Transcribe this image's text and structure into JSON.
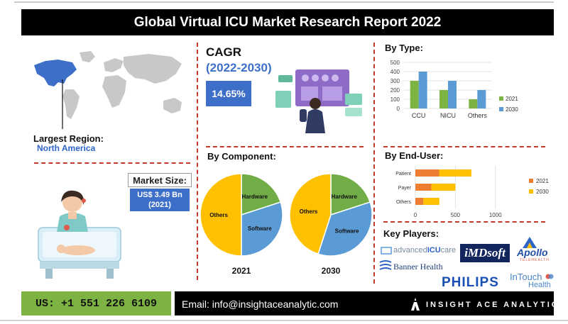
{
  "title": "Global Virtual ICU Market Research Report 2022",
  "region": {
    "label": "Largest Region:",
    "value": "North America"
  },
  "market_size": {
    "label": "Market Size:",
    "value_line1": "US$ 3.49 Bn",
    "value_line2": "(2021)"
  },
  "cagr": {
    "label": "CAGR",
    "period": "(2022-2030)",
    "value": "14.65%"
  },
  "sections": {
    "by_type": "By Type:",
    "by_component": "By Component:",
    "by_end_user": "By End-User:",
    "key_players": "Key Players:"
  },
  "colors": {
    "y2021": "#7cb342",
    "y2030": "#5b9bd5",
    "hw": "#70ad47",
    "sw": "#5b9bd5",
    "others": "#ffc000",
    "eu2021": "#ed7d31",
    "eu2030": "#ffc000",
    "accent": "#3d6fc9",
    "divider": "#c0392b"
  },
  "chart_data": [
    {
      "type": "bar",
      "title": "By Type:",
      "categories": [
        "CCU",
        "NICU",
        "Others"
      ],
      "series": [
        {
          "name": "2021",
          "values": [
            300,
            200,
            100
          ]
        },
        {
          "name": "2030",
          "values": [
            400,
            300,
            200
          ]
        }
      ],
      "yticks": [
        "0",
        "100",
        "200",
        "300",
        "400",
        "500"
      ],
      "ylim": [
        0,
        500
      ],
      "legend": "right"
    },
    {
      "type": "pie",
      "title": "By Component:",
      "year": "2021",
      "slices": [
        {
          "label": "Hardware",
          "value": 20
        },
        {
          "label": "Software",
          "value": 30
        },
        {
          "label": "Others",
          "value": 50
        }
      ]
    },
    {
      "type": "pie",
      "title": "By Component:",
      "year": "2030",
      "slices": [
        {
          "label": "Hardware",
          "value": 20
        },
        {
          "label": "Software",
          "value": 35
        },
        {
          "label": "Others",
          "value": 45
        }
      ]
    },
    {
      "type": "bar",
      "orientation": "horizontal",
      "stacked": true,
      "title": "By End-User:",
      "categories": [
        "Patient",
        "Payer",
        "Others"
      ],
      "series": [
        {
          "name": "2021",
          "values": [
            300,
            200,
            100
          ]
        },
        {
          "name": "2030",
          "values": [
            400,
            300,
            200
          ]
        }
      ],
      "xticks": [
        "0",
        "500",
        "1000"
      ],
      "xlim": [
        0,
        1100
      ],
      "legend": "right"
    }
  ],
  "players": {
    "advanced": {
      "part1": "advanced",
      "part2": "ICU",
      "part3": "care"
    },
    "imdsoft": "iMDsoft",
    "apollo": {
      "name": "Apollo",
      "sub": "TELEHEALTH"
    },
    "banner": "Banner Health",
    "philips": "PHILIPS",
    "intouch": {
      "name": "InTouch",
      "sub": "Health"
    }
  },
  "footer": {
    "phone": "US: +1 551 226 6109",
    "email": "Email: info@insightaceanalytic.com",
    "brand": "INSIGHT ACE ANALYTIC"
  }
}
